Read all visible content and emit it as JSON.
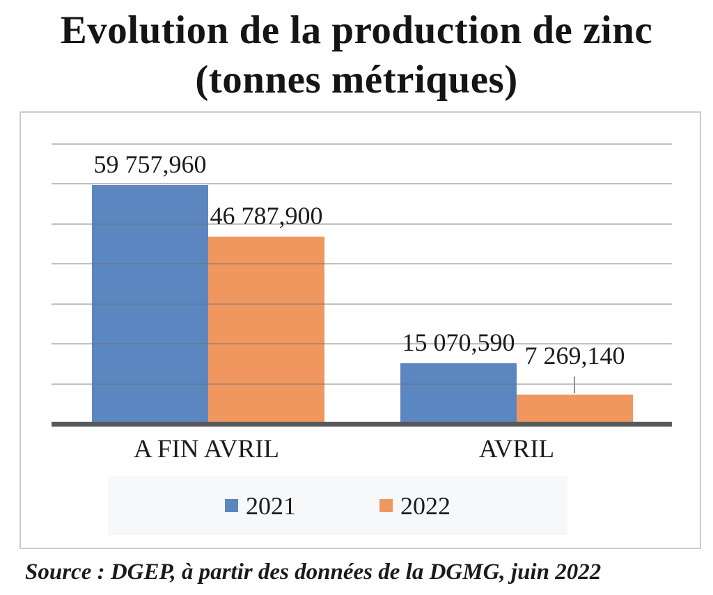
{
  "title": {
    "line1": "Evolution de la production de zinc",
    "line2": "(tonnes métriques)"
  },
  "source": "Source : DGEP, à partir des données de la DGMG, juin 2022",
  "chart_data": {
    "type": "bar",
    "title": "Evolution de la production de zinc (tonnes métriques)",
    "categories": [
      "A FIN AVRIL",
      "AVRIL"
    ],
    "series": [
      {
        "name": "2021",
        "color": "#5c86c0",
        "values": [
          59757.96,
          15070.59
        ],
        "value_labels": [
          "59 757,960",
          "15 070,590"
        ]
      },
      {
        "name": "2022",
        "color": "#ef975e",
        "values": [
          46787.9,
          7269.14
        ],
        "value_labels": [
          "46 787,900",
          "7 269,140"
        ]
      }
    ],
    "xlabel": "",
    "ylabel": "",
    "ylim": [
      0,
      70000
    ],
    "gridline_interval": 10000,
    "grid": true,
    "y_axis_labels_visible": false,
    "legend_position": "bottom",
    "callout_point": {
      "series_index": 1,
      "point_index": 1
    }
  },
  "colors": {
    "bar_2021": "#5c86c0",
    "bar_2022": "#ef975e",
    "axis_line": "#58595b",
    "gridline": "#b4b7ba",
    "frame_border": "#c9cbcd",
    "legend_background": "#f7f8fa",
    "text": "#1a1a1a"
  }
}
